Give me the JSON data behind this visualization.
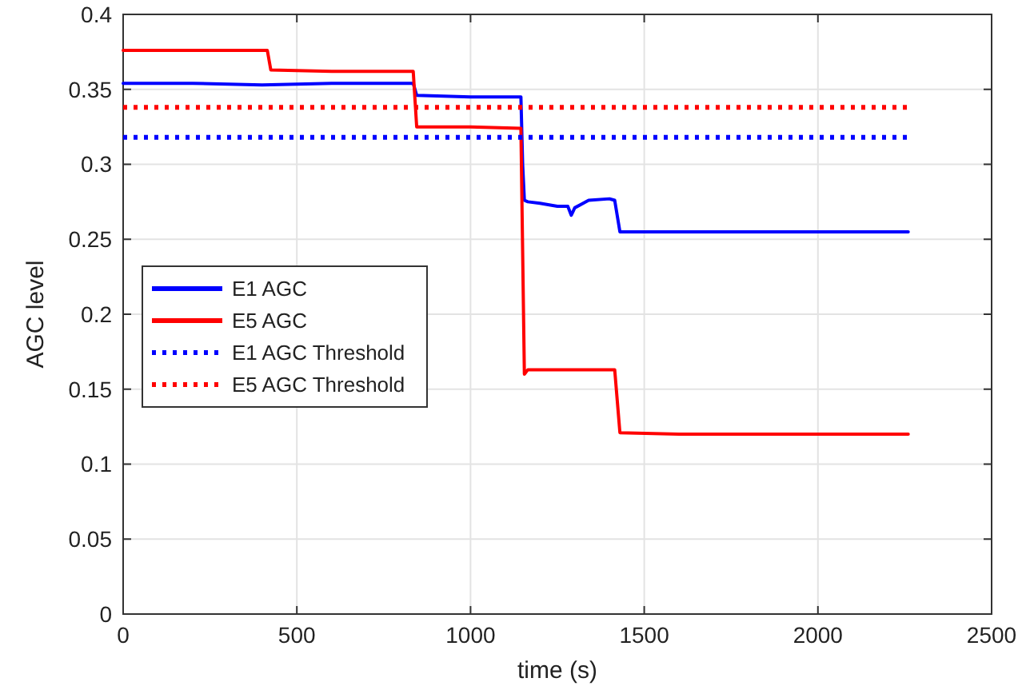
{
  "chart_data": {
    "type": "line",
    "xlabel": "time (s)",
    "ylabel": "AGC level",
    "xlim": [
      0,
      2500
    ],
    "ylim": [
      0,
      0.4
    ],
    "xticks": [
      0,
      500,
      1000,
      1500,
      2000,
      2500
    ],
    "yticks": [
      0,
      0.05,
      0.1,
      0.15,
      0.2,
      0.25,
      0.3,
      0.35,
      0.4
    ],
    "grid": true,
    "legend": "left",
    "marker": "none",
    "series": [
      {
        "name": "E1 AGC",
        "color": "#0000ff",
        "line_style": "solid",
        "x": [
          0,
          200,
          400,
          600,
          835,
          845,
          1000,
          1145,
          1150,
          1155,
          1165,
          1200,
          1250,
          1280,
          1290,
          1300,
          1340,
          1400,
          1415,
          1430,
          1600,
          1800,
          2000,
          2260
        ],
        "values": [
          0.354,
          0.354,
          0.353,
          0.354,
          0.354,
          0.346,
          0.345,
          0.345,
          0.3,
          0.276,
          0.275,
          0.274,
          0.272,
          0.272,
          0.266,
          0.271,
          0.276,
          0.277,
          0.276,
          0.255,
          0.255,
          0.255,
          0.255,
          0.255
        ]
      },
      {
        "name": "E5 AGC",
        "color": "#ff0000",
        "line_style": "solid",
        "x": [
          0,
          200,
          415,
          425,
          600,
          835,
          845,
          1000,
          1145,
          1155,
          1165,
          1300,
          1415,
          1430,
          1600,
          1800,
          2000,
          2260
        ],
        "values": [
          0.376,
          0.376,
          0.376,
          0.363,
          0.362,
          0.362,
          0.325,
          0.325,
          0.324,
          0.16,
          0.163,
          0.163,
          0.163,
          0.121,
          0.12,
          0.12,
          0.12,
          0.12
        ]
      },
      {
        "name": "E1 AGC Threshold",
        "color": "#0000ff",
        "line_style": "dotted",
        "x": [
          0,
          2260
        ],
        "values": [
          0.318,
          0.318
        ]
      },
      {
        "name": "E5 AGC Threshold",
        "color": "#ff0000",
        "line_style": "dotted",
        "x": [
          0,
          2260
        ],
        "values": [
          0.338,
          0.338
        ]
      }
    ]
  }
}
